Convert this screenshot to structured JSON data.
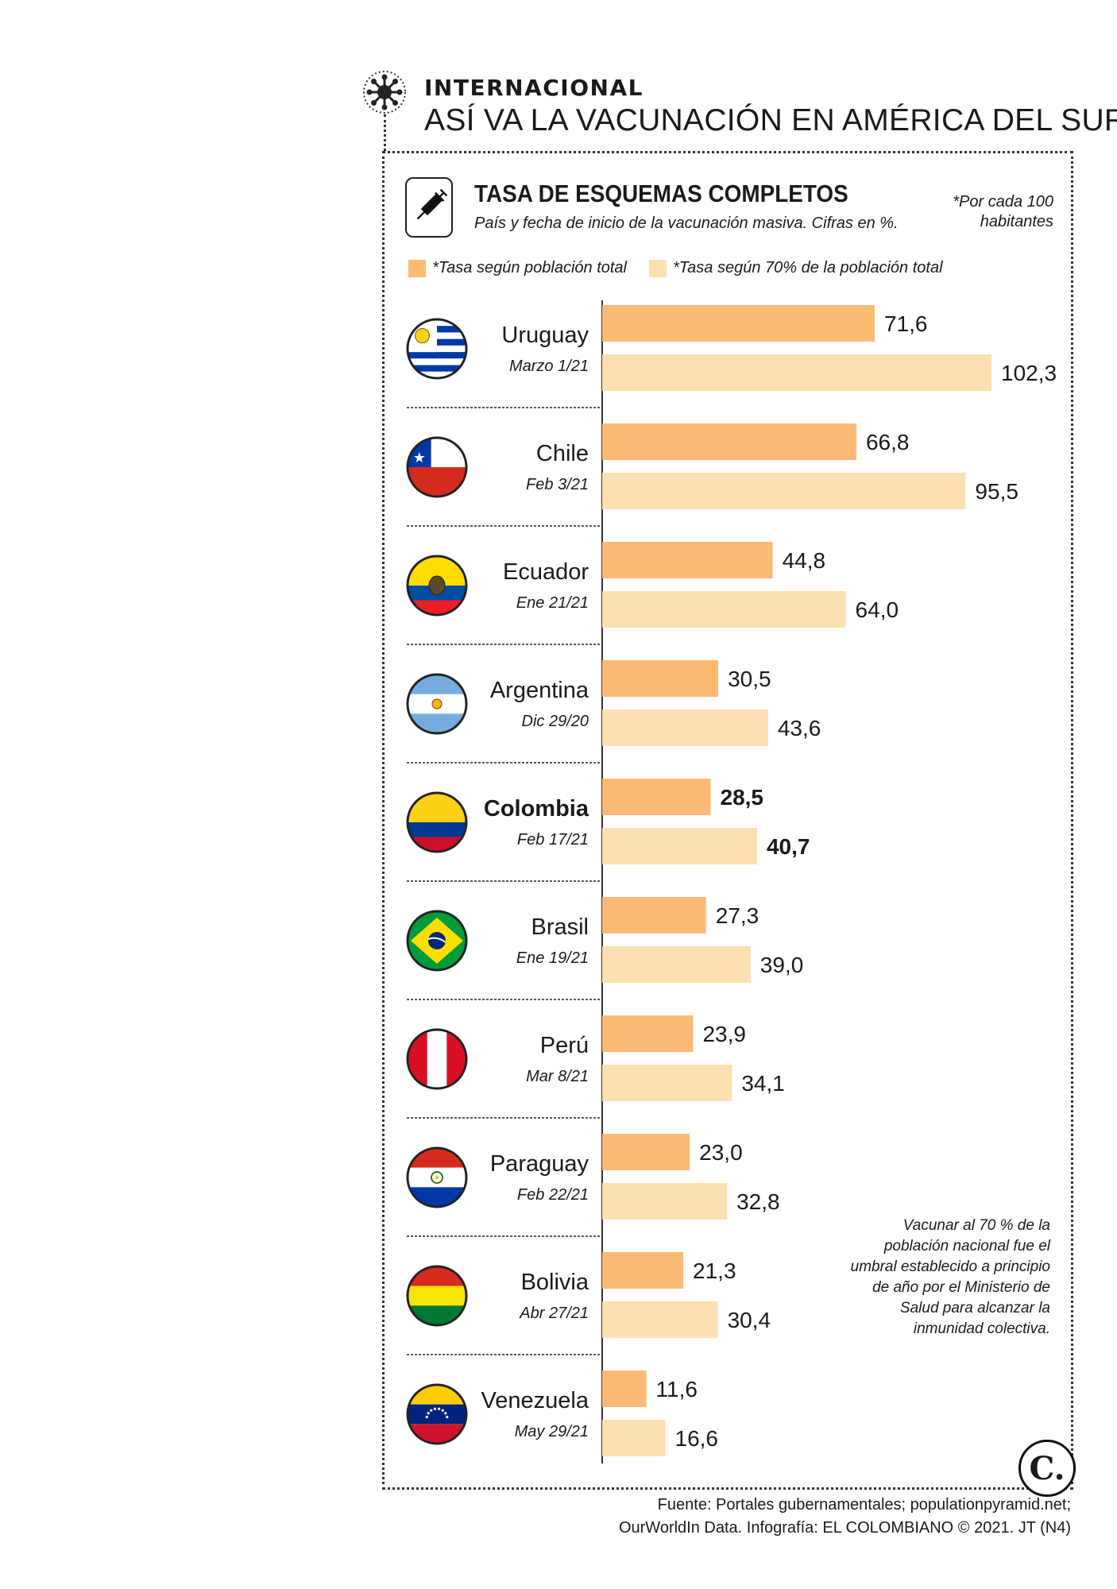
{
  "header": {
    "section": "INTERNACIONAL",
    "headline": "ASÍ VA LA VACUNACIÓN EN AMÉRICA DEL SUR"
  },
  "chart_header": {
    "title": "TASA DE ESQUEMAS COMPLETOS",
    "subtitle": "País y fecha de inicio de la vacunación masiva. Cifras en %.",
    "note_line1": "*Por cada 100",
    "note_line2": "habitantes"
  },
  "colors": {
    "total": "#fdba74",
    "seventy": "#fde0b2",
    "text": "#1a1a1a"
  },
  "side_note": "Vacunar al 70 % de la población nacional fue el umbral establecido a principio de año por el Ministerio de Salud para alcanzar la inmunidad colectiva.",
  "footer": {
    "source_line1": "Fuente: Portales gubernamentales; populationpyramid.net;",
    "source_line2": "OurWorldIn Data. Infografía: EL COLOMBIANO © 2021. JT (N4)",
    "logo": "C."
  },
  "chart_data": {
    "type": "bar",
    "orientation": "horizontal",
    "title": "TASA DE ESQUEMAS COMPLETOS",
    "categories": [
      "Uruguay",
      "Chile",
      "Ecuador",
      "Argentina",
      "Colombia",
      "Brasil",
      "Perú",
      "Paraguay",
      "Bolivia",
      "Venezuela"
    ],
    "dates": [
      "Marzo 1/21",
      "Feb 3/21",
      "Ene 21/21",
      "Dic 29/20",
      "Feb 17/21",
      "Ene 19/21",
      "Mar 8/21",
      "Feb 22/21",
      "Abr 27/21",
      "May 29/21"
    ],
    "flags": [
      "flag-uruguay",
      "flag-chile",
      "flag-ecuador",
      "flag-argentina",
      "flag-colombia",
      "flag-brazil",
      "flag-peru",
      "flag-paraguay",
      "flag-bolivia",
      "flag-venezuela"
    ],
    "highlight": "Colombia",
    "series": [
      {
        "name": "*Tasa según población total",
        "color": "#fdba74",
        "values": [
          71.6,
          66.8,
          44.8,
          30.5,
          28.5,
          27.3,
          23.9,
          23.0,
          21.3,
          11.6
        ],
        "labels": [
          "71,6",
          "66,8",
          "44,8",
          "30,5",
          "28,5",
          "27,3",
          "23,9",
          "23,0",
          "21,3",
          "11,6"
        ]
      },
      {
        "name": "*Tasa según 70% de la población total",
        "color": "#fde0b2",
        "values": [
          102.3,
          95.5,
          64.0,
          43.6,
          40.7,
          39.0,
          34.1,
          32.8,
          30.4,
          16.6
        ],
        "labels": [
          "102,3",
          "95,5",
          "64,0",
          "43,6",
          "40,7",
          "39,0",
          "34,1",
          "32,8",
          "30,4",
          "16,6"
        ]
      }
    ],
    "xlim": [
      0,
      102.3
    ]
  }
}
